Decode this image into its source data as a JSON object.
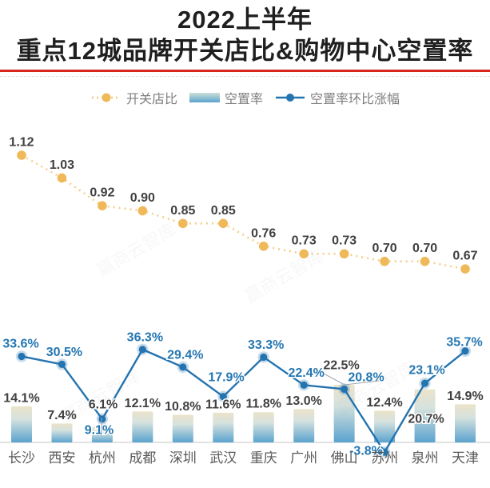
{
  "title": {
    "line1": "2022上半年",
    "line2": "重点12城品牌开关店比&购物中心空置率"
  },
  "legend": [
    {
      "label": "开关店比",
      "type": "dotted-line",
      "color": "#efb95a"
    },
    {
      "label": "空置率",
      "type": "bar",
      "color": "#5aa3cf"
    },
    {
      "label": "空置率环比涨幅",
      "type": "line",
      "color": "#2474b0"
    }
  ],
  "watermark": "赢商云智库",
  "colors": {
    "open_close_line": "#efb95a",
    "vacancy_bar_top": "#ebe3ca",
    "vacancy_bar_bottom": "#5aa3cf",
    "vacancy_change_line": "#2474b0",
    "title_underline": "#d7261d",
    "label_dark": "#404040",
    "label_blue": "#2577b2",
    "city_gray": "#595959"
  },
  "chart_data": {
    "type": "combo",
    "categories": [
      "长沙",
      "西安",
      "杭州",
      "成都",
      "深圳",
      "武汉",
      "重庆",
      "广州",
      "佛山",
      "苏州",
      "泉州",
      "天津"
    ],
    "series": [
      {
        "name": "开关店比",
        "type": "line",
        "style": "dotted",
        "axis": "ratio",
        "values": [
          1.12,
          1.03,
          0.92,
          0.9,
          0.85,
          0.85,
          0.76,
          0.73,
          0.73,
          0.7,
          0.7,
          0.67
        ],
        "labels": [
          "1.12",
          "1.03",
          "0.92",
          "0.90",
          "0.85",
          "0.85",
          "0.76",
          "0.73",
          "0.73",
          "0.70",
          "0.70",
          "0.67"
        ]
      },
      {
        "name": "空置率",
        "type": "bar",
        "axis": "percent",
        "values": [
          14.1,
          7.4,
          6.1,
          12.1,
          10.8,
          11.6,
          11.8,
          13.0,
          22.5,
          12.4,
          20.7,
          14.9
        ],
        "labels": [
          "14.1%",
          "7.4%",
          "6.1%",
          "12.1%",
          "10.8%",
          "11.6%",
          "11.8%",
          "13.0%",
          "22.5%",
          "12.4%",
          "20.7%",
          "14.9%"
        ]
      },
      {
        "name": "空置率环比涨幅",
        "type": "line",
        "axis": "percent",
        "values": [
          33.6,
          30.5,
          9.1,
          36.3,
          29.4,
          17.9,
          33.3,
          22.4,
          20.8,
          -3.8,
          23.1,
          35.7
        ],
        "labels": [
          "33.6%",
          "30.5%",
          "9.1%",
          "36.3%",
          "29.4%",
          "17.9%",
          "33.3%",
          "22.4%",
          "20.8%",
          "-3.8%",
          "23.1%",
          "35.7%"
        ]
      }
    ],
    "grid": false,
    "legend_position": "top"
  }
}
